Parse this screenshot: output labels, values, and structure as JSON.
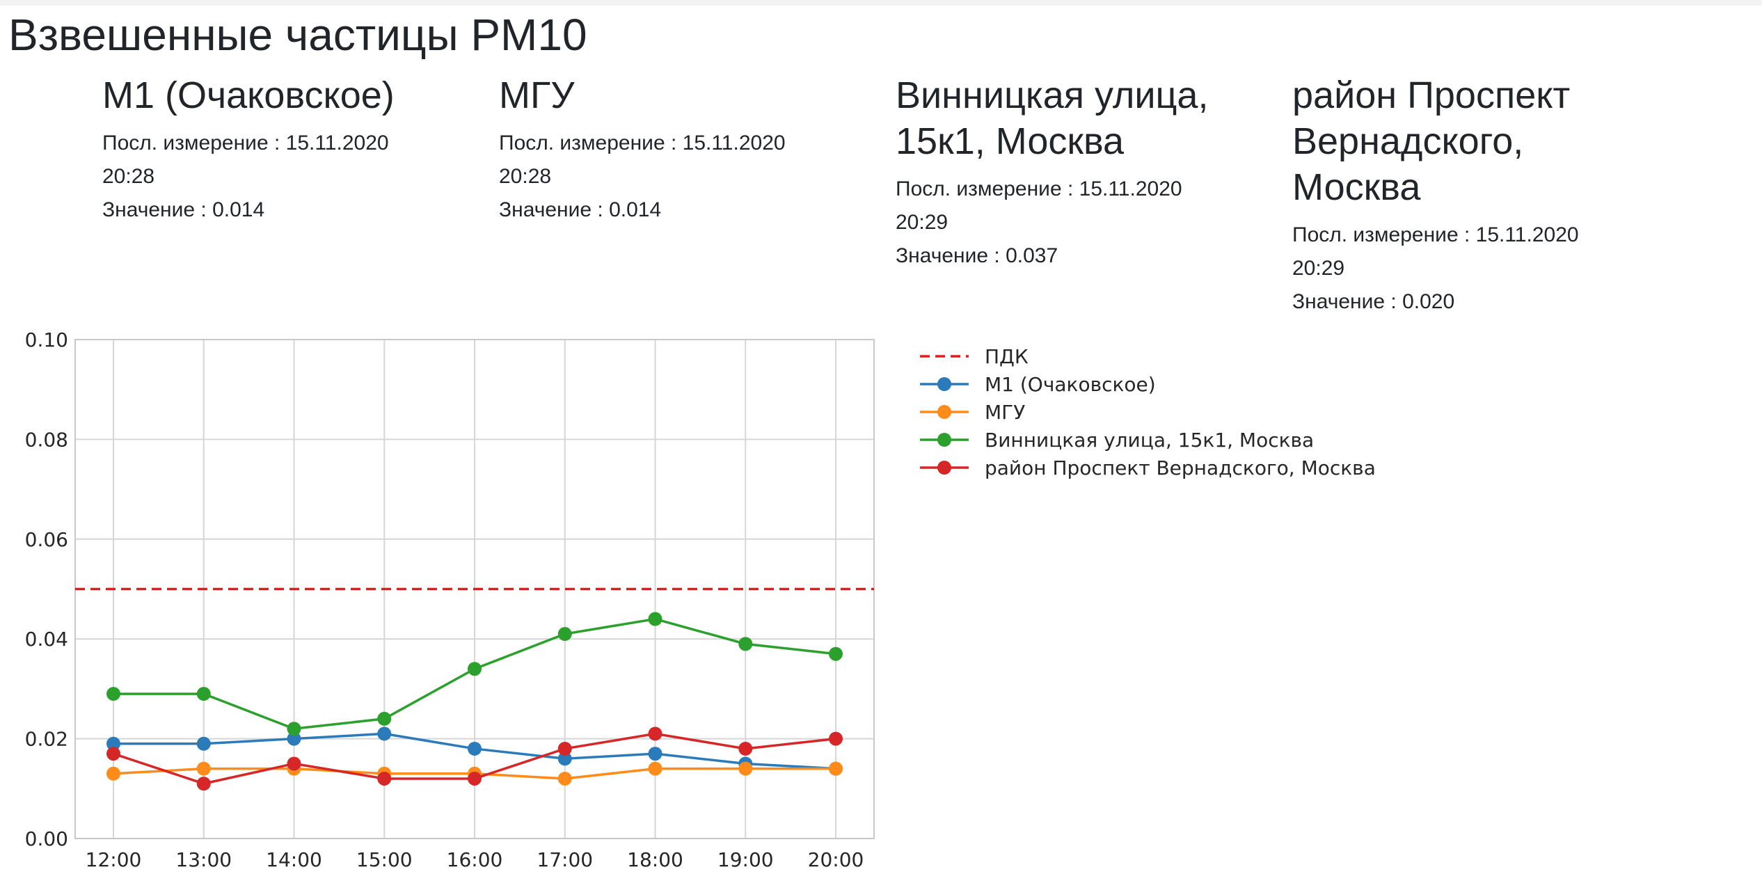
{
  "page": {
    "title": "Взвешенные частицы PM10"
  },
  "stations": [
    {
      "name": "М1 (Очаковское)",
      "last_label": "Посл. измерение :",
      "last_date": "15.11.2020",
      "last_time": "20:28",
      "value_label": "Значение :",
      "value": "0.014"
    },
    {
      "name": "МГУ",
      "last_label": "Посл. измерение :",
      "last_date": "15.11.2020",
      "last_time": "20:28",
      "value_label": "Значение :",
      "value": "0.014"
    },
    {
      "name": "Винницкая улица, 15к1, Москва",
      "last_label": "Посл. измерение :",
      "last_date": "15.11.2020",
      "last_time": "20:29",
      "value_label": "Значение :",
      "value": "0.037"
    },
    {
      "name": "район Проспект Вернадского, Москва",
      "last_label": "Посл. измерение :",
      "last_date": "15.11.2020",
      "last_time": "20:29",
      "value_label": "Значение :",
      "value": "0.020"
    }
  ],
  "chart_data": {
    "type": "line",
    "title": "",
    "xlabel": "",
    "ylabel": "",
    "categories": [
      "12:00",
      "13:00",
      "14:00",
      "15:00",
      "16:00",
      "17:00",
      "18:00",
      "19:00",
      "20:00"
    ],
    "ylim": [
      0,
      0.1
    ],
    "yticks": [
      "0.00",
      "0.02",
      "0.04",
      "0.06",
      "0.08",
      "0.10"
    ],
    "grid": true,
    "legend_position": "right-outside",
    "reference_line": {
      "name": "ПДК",
      "value": 0.05,
      "color": "#e41a1c",
      "style": "dashed"
    },
    "series": [
      {
        "name": "М1 (Очаковское)",
        "color": "#2b7bba",
        "values": [
          0.019,
          0.019,
          0.02,
          0.021,
          0.018,
          0.016,
          0.017,
          0.015,
          0.014
        ]
      },
      {
        "name": "МГУ",
        "color": "#ff8c1a",
        "values": [
          0.013,
          0.014,
          0.014,
          0.013,
          0.013,
          0.012,
          0.014,
          0.014,
          0.014
        ]
      },
      {
        "name": "Винницкая улица, 15к1, Москва",
        "color": "#2ca02c",
        "values": [
          0.029,
          0.029,
          0.022,
          0.024,
          0.034,
          0.041,
          0.044,
          0.039,
          0.037
        ]
      },
      {
        "name": "район Проспект Вернадского, Москва",
        "color": "#d62728",
        "values": [
          0.017,
          0.011,
          0.015,
          0.012,
          0.012,
          0.018,
          0.021,
          0.018,
          0.02
        ]
      }
    ]
  }
}
